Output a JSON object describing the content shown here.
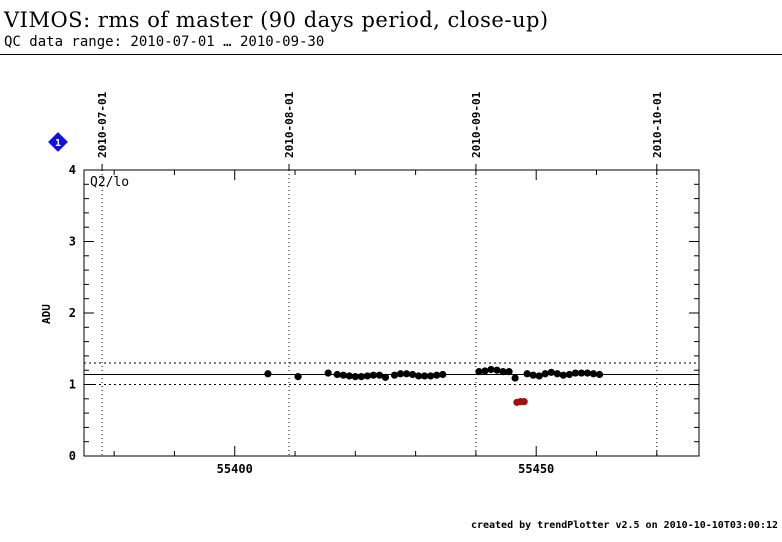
{
  "header": {
    "title": "VIMOS: rms of master (90 days period, close-up)",
    "subtitle": "QC data range: 2010-07-01 … 2010-09-30"
  },
  "footer": {
    "text": "created by trendPlotter v2.5 on 2010-10-10T03:00:12"
  },
  "marker": {
    "label": "1",
    "color": "#1010e0"
  },
  "chart_data": {
    "type": "scatter",
    "panel_label": "Q2/lo",
    "ylabel": "ADU",
    "xlim": [
      55375,
      55477
    ],
    "ylim": [
      0,
      4
    ],
    "x_ticks": [
      55400,
      55450
    ],
    "y_ticks": [
      0,
      1,
      2,
      3,
      4
    ],
    "top_axis_dates": [
      {
        "mjd": 55378,
        "label": "2010-07-01"
      },
      {
        "mjd": 55409,
        "label": "2010-08-01"
      },
      {
        "mjd": 55440,
        "label": "2010-09-01"
      },
      {
        "mjd": 55470,
        "label": "2010-10-01"
      }
    ],
    "reference_line": 1.14,
    "threshold_lines": [
      1.0,
      1.3
    ],
    "grid": "vertical dotted at month boundaries",
    "series": [
      {
        "color": "#000000",
        "x": [
          55405.5,
          55410.5,
          55415.5,
          55417,
          55418,
          55419,
          55420,
          55421,
          55422,
          55423,
          55424,
          55425,
          55426.5,
          55427.5,
          55428.5,
          55429.5,
          55430.5,
          55431.5,
          55432.5,
          55433.5,
          55434.5,
          55440.5,
          55441.5,
          55442.5,
          55443.5,
          55444.5,
          55445.5,
          55446.5,
          55448.5,
          55449.5,
          55450.5,
          55451.5,
          55452.5,
          55453.5,
          55454.5,
          55455.5,
          55456.5,
          55457.5,
          55458.5,
          55459.5,
          55460.5
        ],
        "y": [
          1.15,
          1.11,
          1.16,
          1.14,
          1.13,
          1.12,
          1.11,
          1.11,
          1.12,
          1.13,
          1.13,
          1.1,
          1.13,
          1.15,
          1.15,
          1.14,
          1.12,
          1.12,
          1.12,
          1.13,
          1.14,
          1.18,
          1.19,
          1.21,
          1.2,
          1.18,
          1.18,
          1.09,
          1.15,
          1.13,
          1.12,
          1.15,
          1.17,
          1.15,
          1.13,
          1.14,
          1.16,
          1.16,
          1.16,
          1.15,
          1.14
        ]
      },
      {
        "color": "#a01010",
        "x": [
          55446.8,
          55447.4,
          55448.0
        ],
        "y": [
          0.75,
          0.76,
          0.76
        ]
      }
    ]
  }
}
